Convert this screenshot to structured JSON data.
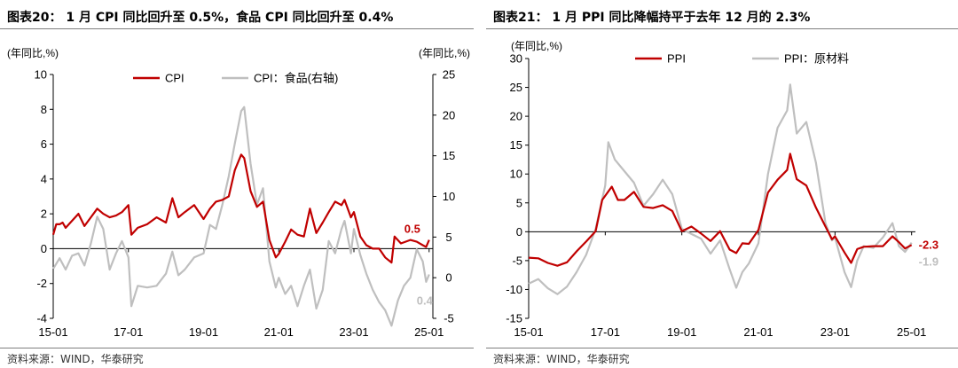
{
  "charts": [
    {
      "title": "图表20： 1 月 CPI 同比回升至 0.5%，食品 CPI 同比回升至 0.4%",
      "source": "资料来源：WIND，华泰研究",
      "chart_data": {
        "type": "line",
        "title": "图表20： 1 月 CPI 同比回升至 0.5%，食品 CPI 同比回升至 0.4%",
        "ylabel_left": "(年同比,%)",
        "ylabel_right": "(年同比,%)",
        "xlim": [
          2015.0,
          2025.1
        ],
        "ylim_left": [
          -4,
          10
        ],
        "ylim_right": [
          -5,
          25
        ],
        "yticks_left": [
          -4,
          -2,
          0,
          2,
          4,
          6,
          8,
          10
        ],
        "yticks_right": [
          -5,
          0,
          5,
          10,
          15,
          20,
          25
        ],
        "xticks": [
          {
            "pos": 2015.0,
            "label": "15-01"
          },
          {
            "pos": 2017.0,
            "label": "17-01"
          },
          {
            "pos": 2019.0,
            "label": "19-01"
          },
          {
            "pos": 2021.0,
            "label": "21-01"
          },
          {
            "pos": 2023.0,
            "label": "23-01"
          },
          {
            "pos": 2025.0,
            "label": "25-01"
          }
        ],
        "legend": "top-center",
        "series": [
          {
            "name": "CPI",
            "axis": "left",
            "color": "#c00000",
            "width": 2.2,
            "x": [
              2015.0,
              2015.08,
              2015.17,
              2015.25,
              2015.33,
              2015.5,
              2015.67,
              2015.83,
              2016.0,
              2016.17,
              2016.33,
              2016.5,
              2016.67,
              2016.83,
              2017.0,
              2017.08,
              2017.25,
              2017.5,
              2017.75,
              2018.0,
              2018.17,
              2018.33,
              2018.5,
              2018.75,
              2019.0,
              2019.17,
              2019.33,
              2019.5,
              2019.67,
              2019.83,
              2020.0,
              2020.08,
              2020.25,
              2020.42,
              2020.58,
              2020.75,
              2020.92,
              2021.0,
              2021.17,
              2021.33,
              2021.5,
              2021.67,
              2021.83,
              2022.0,
              2022.17,
              2022.33,
              2022.5,
              2022.67,
              2022.75,
              2022.92,
              2023.0,
              2023.17,
              2023.33,
              2023.5,
              2023.67,
              2023.83,
              2024.0,
              2024.08,
              2024.25,
              2024.5,
              2024.67,
              2024.83,
              2024.92,
              2025.0
            ],
            "values": [
              0.8,
              1.4,
              1.4,
              1.5,
              1.2,
              1.6,
              2.0,
              1.3,
              1.8,
              2.3,
              2.0,
              1.8,
              1.9,
              2.1,
              2.5,
              0.8,
              1.2,
              1.4,
              1.8,
              1.5,
              2.9,
              1.8,
              2.1,
              2.5,
              1.7,
              2.3,
              2.7,
              2.8,
              3.0,
              4.5,
              5.4,
              5.2,
              3.3,
              2.4,
              2.7,
              0.5,
              -0.5,
              -0.3,
              0.4,
              1.1,
              0.8,
              0.7,
              2.3,
              0.9,
              1.5,
              2.1,
              2.7,
              2.5,
              2.8,
              1.8,
              2.1,
              0.7,
              0.2,
              0.0,
              0.0,
              -0.5,
              -0.8,
              0.7,
              0.3,
              0.5,
              0.4,
              0.2,
              0.1,
              0.5
            ]
          },
          {
            "name": "CPI：食品(右轴)",
            "axis": "right",
            "color": "#bfbfbf",
            "width": 2.2,
            "x": [
              2015.0,
              2015.17,
              2015.33,
              2015.5,
              2015.67,
              2015.83,
              2016.0,
              2016.17,
              2016.33,
              2016.5,
              2016.67,
              2016.83,
              2017.0,
              2017.08,
              2017.25,
              2017.5,
              2017.75,
              2018.0,
              2018.17,
              2018.33,
              2018.5,
              2018.75,
              2019.0,
              2019.17,
              2019.33,
              2019.5,
              2019.67,
              2019.83,
              2020.0,
              2020.08,
              2020.25,
              2020.42,
              2020.58,
              2020.75,
              2020.92,
              2021.0,
              2021.17,
              2021.33,
              2021.5,
              2021.67,
              2021.83,
              2022.0,
              2022.17,
              2022.33,
              2022.5,
              2022.67,
              2022.75,
              2022.92,
              2023.0,
              2023.17,
              2023.33,
              2023.5,
              2023.67,
              2023.83,
              2024.0,
              2024.17,
              2024.33,
              2024.5,
              2024.67,
              2024.83,
              2024.92,
              2025.0
            ],
            "values": [
              1.1,
              2.4,
              1.0,
              2.7,
              3.0,
              1.5,
              4.2,
              7.5,
              6.0,
              1.0,
              3.0,
              4.5,
              2.5,
              -3.5,
              -1.0,
              -1.2,
              -1.0,
              0.5,
              3.2,
              0.3,
              1.0,
              2.5,
              3.0,
              6.5,
              6.0,
              9.0,
              12.5,
              16.5,
              20.5,
              21.0,
              14.0,
              9.0,
              11.0,
              2.0,
              -1.2,
              0.0,
              -2.0,
              -1.0,
              -3.5,
              -1.0,
              1.0,
              -3.8,
              -1.5,
              4.5,
              3.0,
              6.0,
              7.0,
              3.0,
              6.0,
              2.8,
              0.5,
              -1.5,
              -3.0,
              -4.0,
              -5.9,
              -2.8,
              -1.0,
              0.0,
              3.5,
              2.0,
              -0.5,
              0.4
            ]
          }
        ],
        "annotations": [
          {
            "text": "0.5",
            "series": "CPI",
            "color": "#c00000"
          },
          {
            "text": "0.4",
            "series": "CPI：食品(右轴)",
            "color": "#bfbfbf"
          }
        ]
      }
    },
    {
      "title": "图表21： 1 月 PPI 同比降幅持平于去年 12 月的 2.3%",
      "source": "资料来源：WIND，华泰研究",
      "chart_data": {
        "type": "line",
        "title": "图表21： 1 月 PPI 同比降幅持平于去年 12 月的 2.3%",
        "ylabel_left": "(年同比,%)",
        "xlim": [
          2015.0,
          2025.1
        ],
        "ylim_left": [
          -15,
          30
        ],
        "yticks_left": [
          -15,
          -10,
          -5,
          0,
          5,
          10,
          15,
          20,
          25,
          30
        ],
        "xticks": [
          {
            "pos": 2015.0,
            "label": "15-01"
          },
          {
            "pos": 2017.0,
            "label": "17-01"
          },
          {
            "pos": 2019.0,
            "label": "19-01"
          },
          {
            "pos": 2021.0,
            "label": "21-01"
          },
          {
            "pos": 2023.0,
            "label": "23-01"
          },
          {
            "pos": 2025.0,
            "label": "25-01"
          }
        ],
        "legend": "top-center",
        "series": [
          {
            "name": "PPI",
            "axis": "left",
            "color": "#c00000",
            "width": 2.2,
            "x": [
              2015.0,
              2015.25,
              2015.5,
              2015.75,
              2016.0,
              2016.25,
              2016.5,
              2016.75,
              2016.92,
              2017.17,
              2017.33,
              2017.5,
              2017.75,
              2018.0,
              2018.25,
              2018.5,
              2018.75,
              2019.0,
              2019.25,
              2019.5,
              2019.75,
              2020.0,
              2020.25,
              2020.42,
              2020.58,
              2020.75,
              2021.0,
              2021.25,
              2021.5,
              2021.75,
              2021.83,
              2022.0,
              2022.25,
              2022.5,
              2022.75,
              2022.92,
              2023.0,
              2023.25,
              2023.42,
              2023.58,
              2023.75,
              2024.0,
              2024.25,
              2024.5,
              2024.67,
              2024.83,
              2025.0
            ],
            "values": [
              -4.5,
              -4.6,
              -5.4,
              -5.9,
              -5.3,
              -3.4,
              -1.7,
              0.1,
              5.5,
              7.8,
              5.5,
              5.5,
              6.9,
              4.3,
              4.1,
              4.6,
              3.6,
              0.1,
              0.9,
              -0.3,
              -1.6,
              0.1,
              -3.1,
              -3.7,
              -2.0,
              -2.1,
              0.3,
              6.8,
              9.0,
              10.7,
              13.5,
              9.1,
              8.0,
              4.2,
              0.9,
              -1.3,
              -0.8,
              -3.6,
              -5.4,
              -3.0,
              -2.6,
              -2.5,
              -2.5,
              -0.8,
              -1.8,
              -2.9,
              -2.3
            ]
          },
          {
            "name": "PPI：原材料",
            "axis": "left",
            "color": "#bfbfbf",
            "width": 2.2,
            "x": [
              2015.0,
              2015.25,
              2015.5,
              2015.75,
              2016.0,
              2016.25,
              2016.5,
              2016.75,
              2017.0,
              2017.08,
              2017.25,
              2017.5,
              2017.75,
              2018.0,
              2018.25,
              2018.5,
              2018.75,
              2019.0,
              2019.25,
              2019.5,
              2019.75,
              2020.0,
              2020.25,
              2020.42,
              2020.58,
              2020.75,
              2021.0,
              2021.25,
              2021.5,
              2021.75,
              2021.83,
              2021.92,
              2022.0,
              2022.25,
              2022.5,
              2022.75,
              2022.92,
              2023.0,
              2023.25,
              2023.42,
              2023.58,
              2023.75,
              2024.0,
              2024.25,
              2024.5,
              2024.67,
              2024.83,
              2025.0
            ],
            "values": [
              -9.0,
              -8.2,
              -9.8,
              -10.8,
              -9.5,
              -7.0,
              -4.0,
              0.5,
              8.0,
              15.5,
              12.5,
              10.5,
              8.5,
              4.5,
              6.5,
              9.0,
              6.5,
              0.5,
              -0.4,
              -1.2,
              -3.8,
              -1.5,
              -6.5,
              -9.7,
              -7.0,
              -5.5,
              -2.0,
              10.0,
              18.0,
              21.0,
              25.5,
              21.0,
              17.0,
              19.0,
              12.0,
              1.5,
              -1.5,
              -1.0,
              -7.0,
              -9.6,
              -5.0,
              -2.5,
              -2.8,
              -1.0,
              1.5,
              -2.5,
              -3.5,
              -1.9
            ]
          }
        ],
        "annotations": [
          {
            "text": "-2.3",
            "series": "PPI",
            "color": "#c00000"
          },
          {
            "text": "-1.9",
            "series": "PPI：原材料",
            "color": "#bfbfbf"
          }
        ]
      }
    }
  ]
}
